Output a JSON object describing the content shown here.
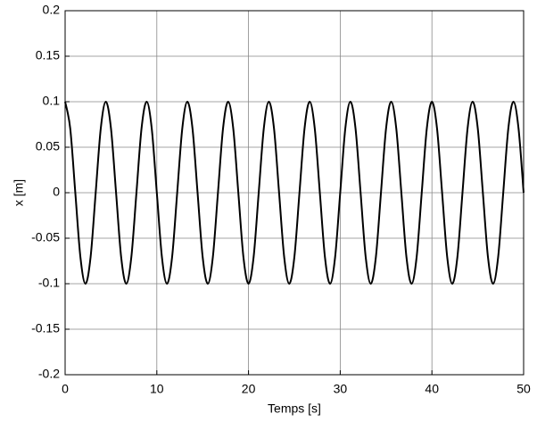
{
  "chart_data": {
    "type": "line",
    "xlabel": "Temps [s]",
    "ylabel": "x [m]",
    "xlim": [
      0,
      50
    ],
    "ylim": [
      -0.2,
      0.2
    ],
    "xticks": [
      0,
      10,
      20,
      30,
      40,
      50
    ],
    "yticks": [
      -0.2,
      -0.15,
      -0.1,
      -0.05,
      0,
      0.05,
      0.1,
      0.15,
      0.2
    ],
    "grid": true,
    "series": [
      {
        "color": "#000000",
        "x": [
          0,
          0.556,
          1.111,
          1.667,
          2.222,
          2.778,
          3.333,
          3.889,
          4.444,
          5,
          5.556,
          6.111,
          6.667,
          7.222,
          7.778,
          8.333,
          8.889,
          9.444,
          10,
          10.556,
          11.111,
          11.667,
          12.222,
          12.778,
          13.333,
          13.889,
          14.444,
          15,
          15.556,
          16.111,
          16.667,
          17.222,
          17.778,
          18.333,
          18.889,
          19.444,
          20,
          20.556,
          21.111,
          21.667,
          22.222,
          22.778,
          23.333,
          23.889,
          24.444,
          25,
          25.556,
          26.111,
          26.667,
          27.222,
          27.778,
          28.333,
          28.889,
          29.444,
          30,
          30.556,
          31.111,
          31.667,
          32.222,
          32.778,
          33.333,
          33.889,
          34.444,
          35,
          35.556,
          36.111,
          36.667,
          37.222,
          37.778,
          38.333,
          38.889,
          39.444,
          40,
          40.556,
          41.111,
          41.667,
          42.222,
          42.778,
          43.333,
          43.889,
          44.444,
          45,
          45.556,
          46.111,
          46.667,
          47.222,
          47.778,
          48.333,
          48.889,
          49.444,
          50
        ],
        "values": [
          0.1,
          0.0707,
          0,
          -0.0707,
          -0.1,
          -0.0707,
          0,
          0.0707,
          0.1,
          0.0707,
          0,
          -0.0707,
          -0.1,
          -0.0707,
          0,
          0.0707,
          0.1,
          0.0707,
          0,
          -0.0707,
          -0.1,
          -0.0707,
          0,
          0.0707,
          0.1,
          0.0707,
          0,
          -0.0707,
          -0.1,
          -0.0707,
          0,
          0.0707,
          0.1,
          0.0707,
          0,
          -0.0707,
          -0.1,
          -0.0707,
          0,
          0.0707,
          0.1,
          0.0707,
          0,
          -0.0707,
          -0.1,
          -0.0707,
          0,
          0.0707,
          0.1,
          0.0707,
          0,
          -0.0707,
          -0.1,
          -0.0707,
          0,
          0.0707,
          0.1,
          0.0707,
          0,
          -0.0707,
          -0.1,
          -0.0707,
          0,
          0.0707,
          0.1,
          0.0707,
          0,
          -0.0707,
          -0.1,
          -0.0707,
          0,
          0.0707,
          0.1,
          0.0707,
          0,
          -0.0707,
          -0.1,
          -0.0707,
          0,
          0.0707,
          0.1,
          0.0707,
          0,
          -0.0707,
          -0.1,
          -0.0707,
          0,
          0.0707,
          0.1,
          0.0707,
          0
        ]
      }
    ]
  }
}
